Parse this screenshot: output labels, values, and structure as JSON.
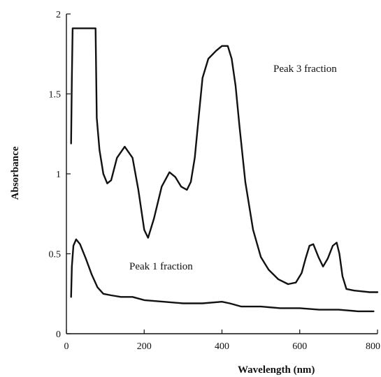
{
  "chart_data": {
    "type": "line",
    "title": "",
    "xlabel": "Wavelength (nm)",
    "ylabel": "Absorbance",
    "xlim": [
      0,
      800
    ],
    "ylim": [
      0,
      2
    ],
    "x_ticks": [
      0,
      200,
      400,
      600,
      800
    ],
    "y_ticks": [
      0,
      0.5,
      1,
      1.5,
      2
    ],
    "x_tick_labels": [
      "0",
      "200",
      "400",
      "600",
      "800"
    ],
    "y_tick_labels": [
      "0",
      "0.5",
      "1",
      "1.5",
      "2"
    ],
    "grid": false,
    "annotations": [
      {
        "text": "Peak 3 fraction",
        "x": 395,
        "y": 1.69
      },
      {
        "text": "Peak 1 fraction",
        "x": 170,
        "y": 0.45
      }
    ],
    "series": [
      {
        "label": "Peak 3 fraction",
        "x": [
          12,
          14,
          16,
          20,
          75,
          78,
          85,
          95,
          105,
          115,
          130,
          150,
          170,
          185,
          200,
          210,
          225,
          245,
          265,
          280,
          295,
          310,
          320,
          330,
          340,
          350,
          365,
          385,
          400,
          415,
          425,
          435,
          445,
          460,
          480,
          500,
          520,
          545,
          570,
          590,
          605,
          615,
          625,
          635,
          648,
          660,
          672,
          685,
          695,
          702,
          710,
          720,
          740,
          780,
          800
        ],
        "y": [
          1.19,
          1.6,
          1.91,
          1.91,
          1.91,
          1.35,
          1.15,
          1.0,
          0.94,
          0.96,
          1.1,
          1.17,
          1.1,
          0.9,
          0.65,
          0.6,
          0.72,
          0.92,
          1.01,
          0.98,
          0.92,
          0.9,
          0.95,
          1.1,
          1.35,
          1.6,
          1.72,
          1.77,
          1.8,
          1.8,
          1.72,
          1.55,
          1.3,
          0.95,
          0.65,
          0.48,
          0.4,
          0.34,
          0.31,
          0.32,
          0.38,
          0.47,
          0.55,
          0.56,
          0.48,
          0.42,
          0.47,
          0.55,
          0.57,
          0.5,
          0.36,
          0.28,
          0.27,
          0.26,
          0.26
        ]
      },
      {
        "label": "Peak 1 fraction",
        "x": [
          12,
          14,
          18,
          25,
          35,
          50,
          65,
          80,
          95,
          115,
          140,
          170,
          200,
          250,
          300,
          350,
          400,
          420,
          450,
          500,
          550,
          600,
          650,
          700,
          750,
          790
        ],
        "y": [
          0.23,
          0.42,
          0.55,
          0.59,
          0.56,
          0.47,
          0.37,
          0.29,
          0.25,
          0.24,
          0.23,
          0.23,
          0.21,
          0.2,
          0.19,
          0.19,
          0.2,
          0.19,
          0.17,
          0.17,
          0.16,
          0.16,
          0.15,
          0.15,
          0.14,
          0.14
        ]
      }
    ]
  }
}
